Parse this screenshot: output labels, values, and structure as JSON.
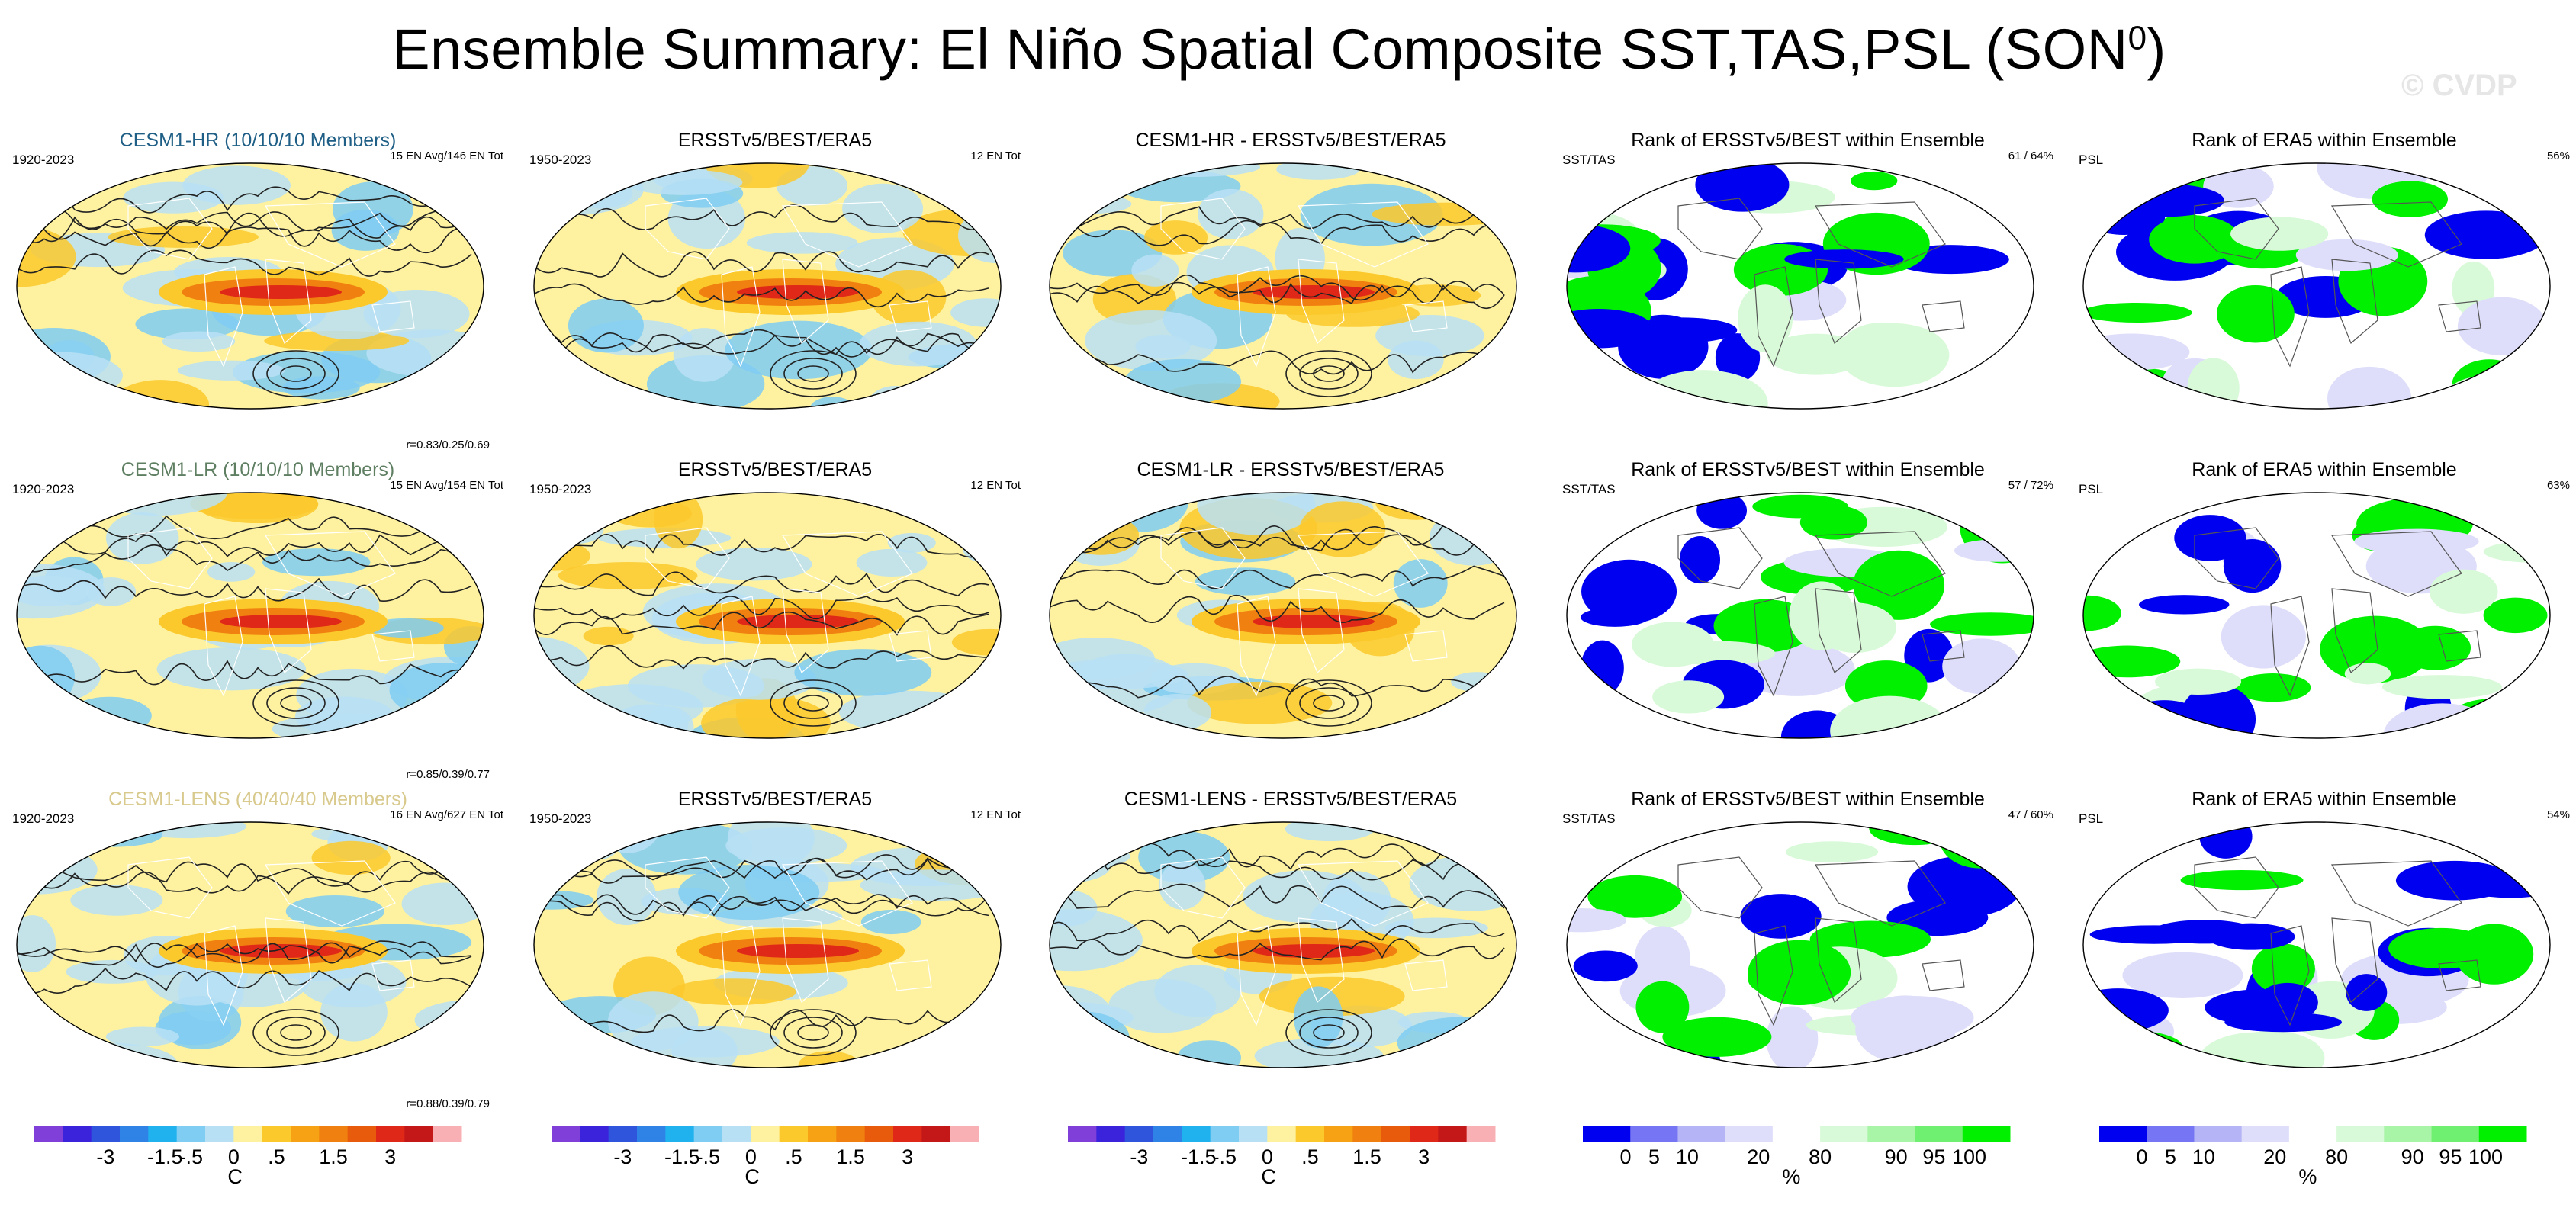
{
  "title": "Ensemble Summary: El Niño Spatial Composite SST,TAS,PSL (SON",
  "title_sup": "0",
  "title_end": ")",
  "watermark": "© CVDP",
  "rows": [
    {
      "model": {
        "title": "CESM1-HR (10/10/10 Members)",
        "title_color": "#1f5f86",
        "period": "1920-2023",
        "count": "15 EN Avg/146 EN Tot",
        "corr": "r=0.83/0.25/0.69"
      },
      "obs": {
        "title": "ERSSTv5/BEST/ERA5",
        "period": "1950-2023",
        "count": "12 EN Tot"
      },
      "diff": {
        "title": "CESM1-HR - ERSSTv5/BEST/ERA5"
      },
      "rank1": {
        "title": "Rank of ERSSTv5/BEST within Ensemble",
        "label": "SST/TAS",
        "value": "61 /  64%"
      },
      "rank2": {
        "title": "Rank of ERA5 within Ensemble",
        "label": "PSL",
        "value": "56%"
      }
    },
    {
      "model": {
        "title": "CESM1-LR (10/10/10 Members)",
        "title_color": "#5f7f62",
        "period": "1920-2023",
        "count": "15 EN Avg/154 EN Tot",
        "corr": "r=0.85/0.39/0.77"
      },
      "obs": {
        "title": "ERSSTv5/BEST/ERA5",
        "period": "1950-2023",
        "count": "12 EN Tot"
      },
      "diff": {
        "title": "CESM1-LR - ERSSTv5/BEST/ERA5"
      },
      "rank1": {
        "title": "Rank of ERSSTv5/BEST within Ensemble",
        "label": "SST/TAS",
        "value": "57 /  72%"
      },
      "rank2": {
        "title": "Rank of ERA5 within Ensemble",
        "label": "PSL",
        "value": "63%"
      }
    },
    {
      "model": {
        "title": "CESM1-LENS (40/40/40 Members)",
        "title_color": "#d8c98c",
        "period": "1920-2023",
        "count": "16 EN Avg/627 EN Tot",
        "corr": "r=0.88/0.39/0.79"
      },
      "obs": {
        "title": "ERSSTv5/BEST/ERA5",
        "period": "1950-2023",
        "count": "12 EN Tot"
      },
      "diff": {
        "title": "CESM1-LENS - ERSSTv5/BEST/ERA5"
      },
      "rank1": {
        "title": "Rank of ERSSTv5/BEST within Ensemble",
        "label": "SST/TAS",
        "value": "47 /  60%"
      },
      "rank2": {
        "title": "Rank of ERA5 within Ensemble",
        "label": "PSL",
        "value": "54%"
      }
    }
  ],
  "chart_data": {
    "type": "heatmap",
    "projection": "Robinson (global)",
    "anomaly_colorbar": {
      "unit": "C",
      "tick_labels": [
        "-3",
        "-1.5",
        "-.5",
        "0",
        ".5",
        "1.5",
        "3"
      ],
      "colors": [
        "#7f3fd8",
        "#3b23dc",
        "#2f55dc",
        "#2f82e6",
        "#1fb2ee",
        "#7fcdf2",
        "#b8e0f4",
        "#fef2a0",
        "#fbc92c",
        "#f7a214",
        "#f08010",
        "#e85a0c",
        "#e02818",
        "#c41818",
        "#f8b0b4"
      ]
    },
    "rank_colorbar": {
      "unit": "%",
      "tick_labels": [
        "0",
        "5",
        "10",
        "20",
        "80",
        "90",
        "95",
        "100"
      ],
      "colors": [
        "#0000f0",
        "#7676f4",
        "#b4b4f6",
        "#dedefa",
        "#ffffff",
        "#d8fad8",
        "#a8f5a8",
        "#70f070",
        "#00f000"
      ]
    }
  }
}
